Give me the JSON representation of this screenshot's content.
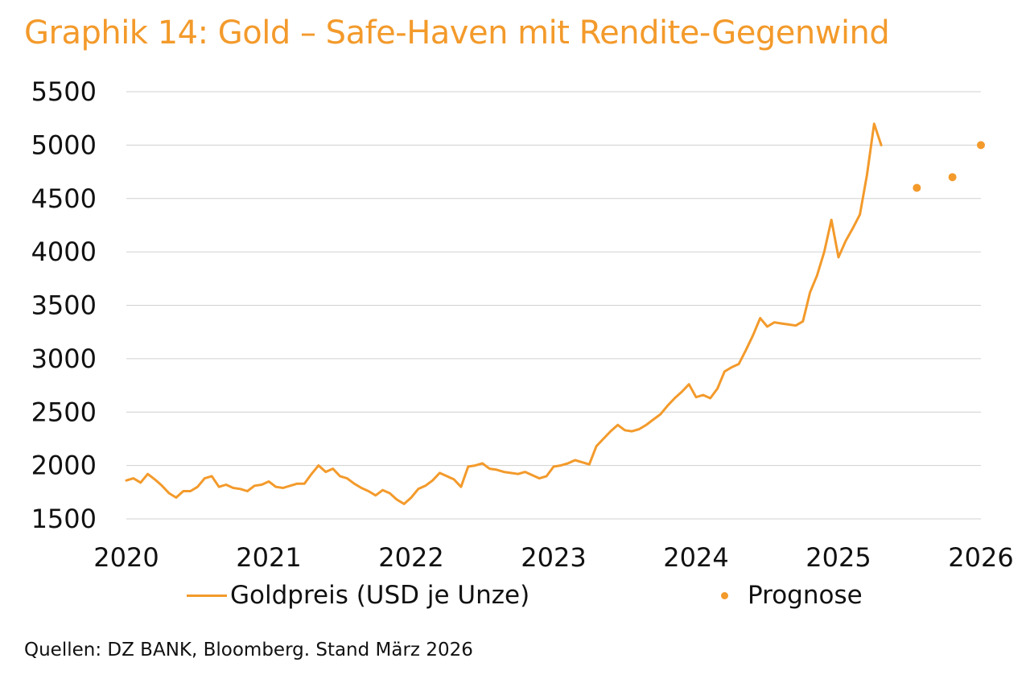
{
  "title": "Graphik 14: Gold – Safe-Haven mit Rendite-Gegenwind",
  "source": "Quellen: DZ BANK, Bloomberg. Stand März 2026",
  "colors": {
    "accent": "#f39a2b",
    "grid": "#d0d0d0",
    "text": "#111111"
  },
  "chart_data": {
    "type": "line",
    "title": "Graphik 14: Gold – Safe-Haven mit Rendite-Gegenwind",
    "xlabel": "",
    "ylabel": "",
    "xlim": [
      2020,
      2026
    ],
    "ylim": [
      1500,
      5500
    ],
    "x_ticks": [
      "2020",
      "2021",
      "2022",
      "2023",
      "2024",
      "2025",
      "2026"
    ],
    "y_ticks": [
      "1500",
      "2000",
      "2500",
      "3000",
      "3500",
      "4000",
      "4500",
      "5000",
      "5500"
    ],
    "grid": "horizontal",
    "legend_position": "bottom",
    "series": [
      {
        "name": "Goldpreis (USD je Unze)",
        "type": "line",
        "x": [
          2020.0,
          2020.05,
          2020.1,
          2020.15,
          2020.2,
          2020.25,
          2020.3,
          2020.35,
          2020.4,
          2020.45,
          2020.5,
          2020.55,
          2020.6,
          2020.65,
          2020.7,
          2020.75,
          2020.8,
          2020.85,
          2020.9,
          2020.95,
          2021.0,
          2021.05,
          2021.1,
          2021.15,
          2021.2,
          2021.25,
          2021.3,
          2021.35,
          2021.4,
          2021.45,
          2021.5,
          2021.55,
          2021.6,
          2021.65,
          2021.7,
          2021.75,
          2021.8,
          2021.85,
          2021.9,
          2021.95,
          2022.0,
          2022.05,
          2022.1,
          2022.15,
          2022.2,
          2022.25,
          2022.3,
          2022.35,
          2022.4,
          2022.45,
          2022.5,
          2022.55,
          2022.6,
          2022.65,
          2022.7,
          2022.75,
          2022.8,
          2022.85,
          2022.9,
          2022.95,
          2023.0,
          2023.05,
          2023.1,
          2023.15,
          2023.2,
          2023.25,
          2023.3,
          2023.35,
          2023.4,
          2023.45,
          2023.5,
          2023.55,
          2023.6,
          2023.65,
          2023.7,
          2023.75,
          2023.8,
          2023.85,
          2023.9,
          2023.95,
          2024.0,
          2024.05,
          2024.1,
          2024.15,
          2024.2,
          2024.25,
          2024.3,
          2024.35,
          2024.4,
          2024.45,
          2024.5,
          2024.55,
          2024.6,
          2024.65,
          2024.7,
          2024.75,
          2024.8,
          2024.85,
          2024.9,
          2024.95,
          2025.0,
          2025.05,
          2025.1,
          2025.15,
          2025.2,
          2025.25,
          2025.3
        ],
        "y": [
          1860,
          1880,
          1840,
          1920,
          1870,
          1810,
          1740,
          1700,
          1760,
          1760,
          1800,
          1880,
          1900,
          1800,
          1820,
          1790,
          1780,
          1760,
          1810,
          1820,
          1850,
          1800,
          1790,
          1810,
          1830,
          1830,
          1920,
          2000,
          1940,
          1970,
          1900,
          1880,
          1830,
          1790,
          1760,
          1720,
          1770,
          1740,
          1680,
          1640,
          1700,
          1780,
          1810,
          1860,
          1930,
          1900,
          1870,
          1800,
          1990,
          2000,
          2020,
          1970,
          1960,
          1940,
          1930,
          1920,
          1940,
          1910,
          1880,
          1900,
          1990,
          2000,
          2020,
          2050,
          2030,
          2010,
          2180,
          2250,
          2320,
          2380,
          2330,
          2320,
          2340,
          2380,
          2430,
          2480,
          2560,
          2630,
          2690,
          2760,
          2640,
          2660,
          2630,
          2720,
          2880,
          2920,
          2950,
          3080,
          3220,
          3380,
          3300,
          3340,
          3330,
          3320,
          3310,
          3350,
          3620,
          3780,
          4000,
          4300,
          3950,
          4100,
          4220,
          4350,
          4720,
          5200,
          5000
        ]
      },
      {
        "name": "Prognose",
        "type": "scatter",
        "x": [
          2025.55,
          2025.8,
          2026.0
        ],
        "y": [
          4600,
          4700,
          5000
        ]
      }
    ]
  }
}
